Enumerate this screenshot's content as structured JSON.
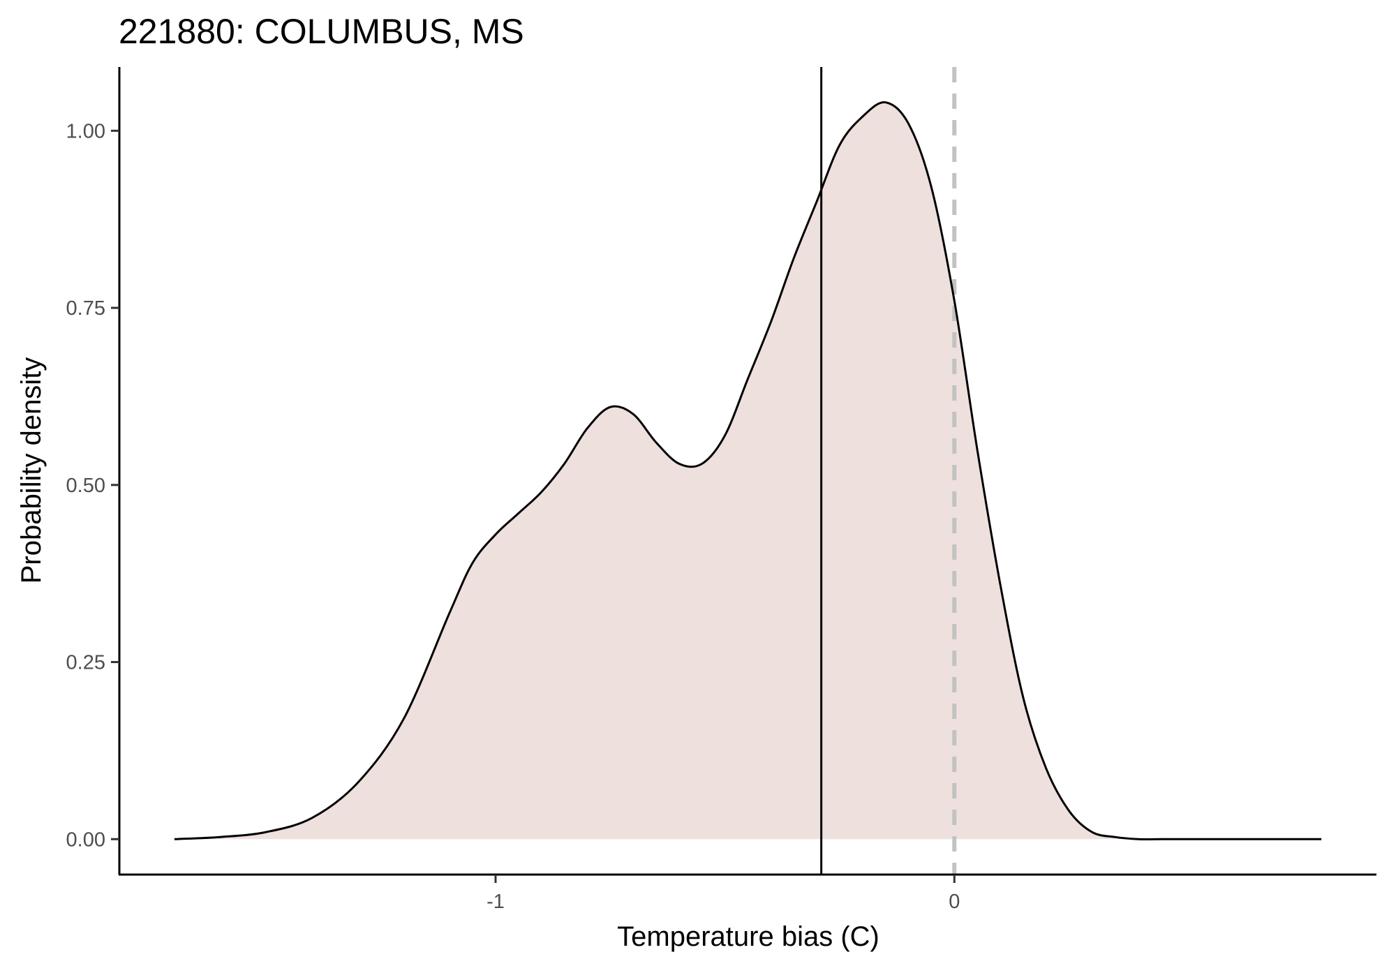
{
  "chart_data": {
    "type": "area",
    "title": "221880: COLUMBUS, MS",
    "xlabel": "Temperature bias (C)",
    "ylabel": "Probability density",
    "xlim": [
      -1.82,
      0.92
    ],
    "ylim": [
      -0.05,
      1.09
    ],
    "x_ticks": [
      -1,
      0
    ],
    "x_tick_labels": [
      "-1",
      "0"
    ],
    "y_ticks": [
      0,
      0.25,
      0.5,
      0.75,
      1.0
    ],
    "y_tick_labels": [
      "0.00",
      "0.25",
      "0.50",
      "0.75",
      "1.00"
    ],
    "grid": false,
    "legend": "none",
    "colors": {
      "fill": "#ede0dd",
      "curve": "#000000",
      "mean_line": "#000000",
      "zero_line": "#c2c2c2",
      "axis": "#000000",
      "tick_label": "#4d4d4d"
    },
    "reference_lines": [
      {
        "x": -0.29,
        "style": "solid"
      },
      {
        "x": 0.0,
        "style": "dashed"
      }
    ],
    "series": [
      {
        "x": [
          -1.7,
          -1.6,
          -1.5,
          -1.4,
          -1.3,
          -1.2,
          -1.1,
          -1.05,
          -1.0,
          -0.95,
          -0.9,
          -0.85,
          -0.8,
          -0.75,
          -0.7,
          -0.65,
          -0.6,
          -0.55,
          -0.5,
          -0.45,
          -0.4,
          -0.35,
          -0.3,
          -0.25,
          -0.2,
          -0.15,
          -0.1,
          -0.05,
          0.0,
          0.05,
          0.1,
          0.15,
          0.2,
          0.25,
          0.3,
          0.35,
          0.4,
          0.45,
          0.5,
          0.55,
          0.6,
          0.65,
          0.7,
          0.8
        ],
        "y": [
          0.0,
          0.003,
          0.01,
          0.03,
          0.08,
          0.17,
          0.32,
          0.39,
          0.43,
          0.46,
          0.49,
          0.53,
          0.58,
          0.61,
          0.6,
          0.56,
          0.53,
          0.53,
          0.57,
          0.65,
          0.73,
          0.82,
          0.9,
          0.98,
          1.02,
          1.04,
          1.01,
          0.92,
          0.76,
          0.55,
          0.36,
          0.2,
          0.1,
          0.04,
          0.01,
          0.003,
          0.0,
          0.0,
          0.0,
          0.0,
          0.0,
          0.0,
          0.0,
          0.0
        ]
      }
    ]
  }
}
